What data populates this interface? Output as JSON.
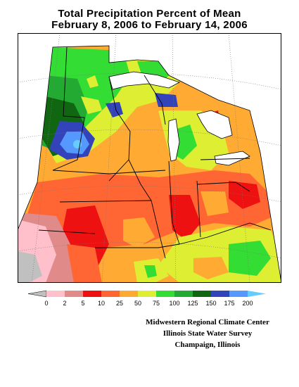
{
  "header": {
    "title_line1": "Total Precipitation Percent of Mean",
    "title_line2": "February 8, 2006 to February 14, 2006"
  },
  "legend": {
    "labels": [
      "0",
      "2",
      "5",
      "10",
      "25",
      "50",
      "75",
      "100",
      "125",
      "150",
      "175",
      "200"
    ],
    "colors": [
      "#c0c0c0",
      "#ffc0cb",
      "#e08a8a",
      "#ee1111",
      "#ff6633",
      "#ffaa33",
      "#ddee33",
      "#33dd33",
      "#22aa33",
      "#116611",
      "#3344bb",
      "#5599ff",
      "#66ccff"
    ]
  },
  "credits": {
    "line1": "Midwestern Regional Climate Center",
    "line2": "Illinois State Water Survey",
    "line3": "Champaign, Illinois"
  }
}
